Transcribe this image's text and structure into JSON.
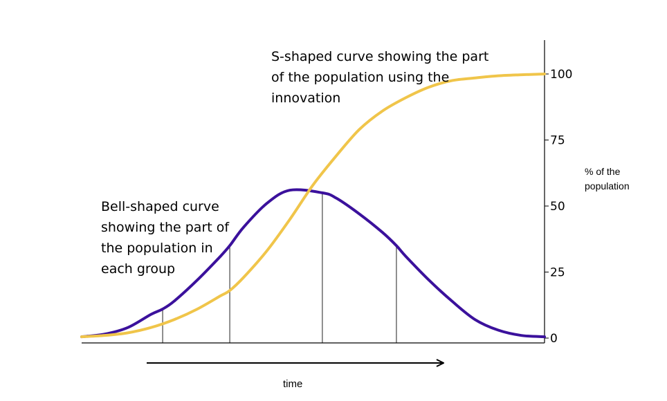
{
  "chart_data": {
    "type": "line",
    "x_range": [
      0,
      100
    ],
    "ylim": [
      0,
      100
    ],
    "yticks": [
      "0",
      "25",
      "50",
      "75",
      "100"
    ],
    "ytick_values": [
      0,
      25,
      50,
      75,
      100
    ],
    "xlabel": "time",
    "ylabel": "% of the\npopulation",
    "grid": false,
    "legend": "none",
    "series": [
      {
        "key": "bell",
        "color": "#3b119c",
        "x": [
          0,
          5,
          10,
          15,
          17.5,
          20,
          25,
          30,
          32,
          35,
          40,
          45,
          52,
          55,
          60,
          65,
          68,
          70,
          75,
          80,
          85,
          90,
          95,
          100
        ],
        "y": [
          0.5,
          1.5,
          4,
          9,
          11,
          14,
          22,
          31,
          35,
          42,
          51,
          56,
          55,
          53,
          47,
          40,
          35,
          31,
          22,
          14,
          7,
          3,
          1,
          0.5
        ]
      },
      {
        "key": "s-curve",
        "color": "#f0c54a",
        "x": [
          0,
          5,
          10,
          15,
          20,
          25,
          30,
          32,
          35,
          40,
          45,
          50,
          55,
          60,
          65,
          70,
          75,
          80,
          85,
          90,
          95,
          100
        ],
        "y": [
          0.5,
          1,
          2,
          4,
          7,
          11,
          16,
          18,
          23,
          33,
          45,
          58,
          69,
          79,
          86,
          91,
          95,
          97.5,
          98.5,
          99.3,
          99.7,
          100
        ]
      }
    ],
    "vertical_lines_x": [
      17.5,
      32,
      52,
      68
    ],
    "annotations": {
      "s_curve": "S-shaped curve showing the part\nof the population using the\ninnovation",
      "bell_curve": "Bell-shaped curve\nshowing the part of\nthe population in\neach group"
    },
    "arrow": {
      "direction": "right"
    }
  }
}
